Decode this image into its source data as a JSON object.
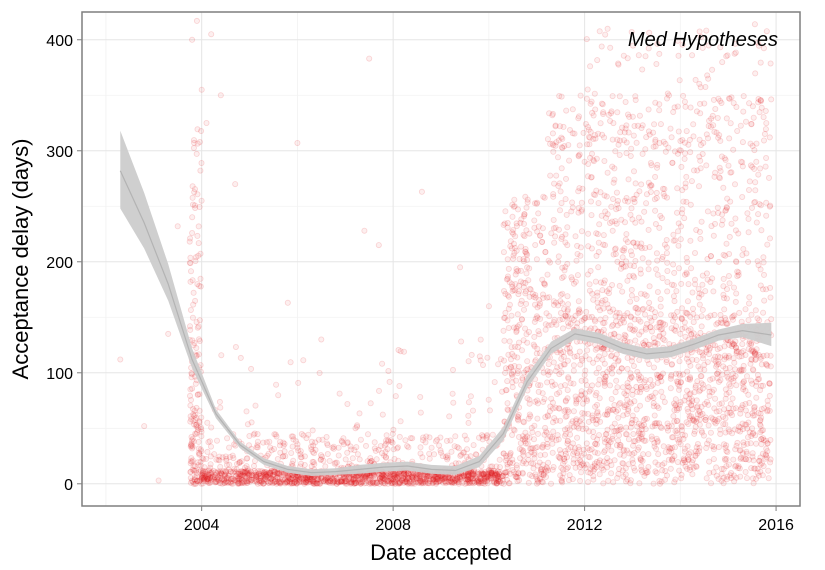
{
  "chart_data": {
    "type": "scatter",
    "title": "",
    "annotation": "Med Hypotheses",
    "xlabel": "Date accepted",
    "ylabel": "Acceptance delay (days)",
    "xlim": [
      2001.5,
      2016.5
    ],
    "ylim": [
      -20,
      425
    ],
    "x_ticks": [
      2004,
      2008,
      2012,
      2016
    ],
    "y_ticks": [
      0,
      100,
      200,
      300,
      400
    ],
    "grid": true,
    "point_color": "#e31a1c",
    "point_alpha": 0.12,
    "smooth_line_color": "#b3b3b3",
    "smooth_band_color": "#cccccc",
    "outliers": [
      {
        "x": 2002.3,
        "y": 112
      },
      {
        "x": 2002.8,
        "y": 52
      },
      {
        "x": 2003.1,
        "y": 3
      },
      {
        "x": 2003.3,
        "y": 135
      },
      {
        "x": 2003.5,
        "y": 232
      },
      {
        "x": 2003.8,
        "y": 400
      },
      {
        "x": 2003.9,
        "y": 417
      },
      {
        "x": 2004.0,
        "y": 355
      },
      {
        "x": 2004.1,
        "y": 325
      },
      {
        "x": 2004.2,
        "y": 405
      },
      {
        "x": 2004.4,
        "y": 350
      },
      {
        "x": 2004.7,
        "y": 270
      },
      {
        "x": 2005.8,
        "y": 163
      },
      {
        "x": 2006.0,
        "y": 307
      },
      {
        "x": 2006.5,
        "y": 130
      },
      {
        "x": 2007.4,
        "y": 228
      },
      {
        "x": 2007.5,
        "y": 383
      },
      {
        "x": 2007.7,
        "y": 215
      },
      {
        "x": 2008.6,
        "y": 263
      },
      {
        "x": 2009.4,
        "y": 195
      },
      {
        "x": 2010.0,
        "y": 160
      }
    ],
    "density": [
      {
        "x": [
          2003.75,
          2004.0
        ],
        "y_range": [
          0,
          320
        ],
        "n": 170,
        "bias": 2.0
      },
      {
        "x": [
          2004.0,
          2010.3
        ],
        "y_range": [
          0,
          12
        ],
        "n": 1000,
        "bias": 1
      },
      {
        "x": [
          2004.0,
          2010.3
        ],
        "y_range": [
          0,
          45
        ],
        "n": 450,
        "bias": 1.4
      },
      {
        "x": [
          2004.0,
          2010.3
        ],
        "y_range": [
          0,
          130
        ],
        "n": 130,
        "bias": 1.6
      },
      {
        "x": [
          2010.3,
          2011.2
        ],
        "y_range": [
          0,
          260
        ],
        "n": 380,
        "bias": 1.3
      },
      {
        "x": [
          2011.2,
          2015.9
        ],
        "y_range": [
          0,
          150
        ],
        "n": 1300,
        "bias": 1
      },
      {
        "x": [
          2011.2,
          2015.9
        ],
        "y_range": [
          150,
          350
        ],
        "n": 700,
        "bias": 1.2
      },
      {
        "x": [
          2012.0,
          2015.9
        ],
        "y_range": [
          300,
          415
        ],
        "n": 90,
        "bias": 1
      }
    ],
    "smooth": [
      {
        "x": 2002.3,
        "y": 282,
        "lo": 248,
        "hi": 318
      },
      {
        "x": 2002.8,
        "y": 235,
        "lo": 212,
        "hi": 262
      },
      {
        "x": 2003.3,
        "y": 180,
        "lo": 165,
        "hi": 198
      },
      {
        "x": 2003.8,
        "y": 112,
        "lo": 104,
        "hi": 122
      },
      {
        "x": 2004.3,
        "y": 63,
        "lo": 59,
        "hi": 67
      },
      {
        "x": 2004.8,
        "y": 35,
        "lo": 32,
        "hi": 38
      },
      {
        "x": 2005.3,
        "y": 20,
        "lo": 17,
        "hi": 23
      },
      {
        "x": 2005.8,
        "y": 13,
        "lo": 10,
        "hi": 16
      },
      {
        "x": 2006.3,
        "y": 10,
        "lo": 7,
        "hi": 13
      },
      {
        "x": 2006.8,
        "y": 11,
        "lo": 8,
        "hi": 14
      },
      {
        "x": 2007.3,
        "y": 13,
        "lo": 9,
        "hi": 17
      },
      {
        "x": 2007.8,
        "y": 15,
        "lo": 11,
        "hi": 19
      },
      {
        "x": 2008.3,
        "y": 16,
        "lo": 12,
        "hi": 20
      },
      {
        "x": 2008.8,
        "y": 13,
        "lo": 9,
        "hi": 17
      },
      {
        "x": 2009.3,
        "y": 12,
        "lo": 8,
        "hi": 16
      },
      {
        "x": 2009.8,
        "y": 20,
        "lo": 15,
        "hi": 25
      },
      {
        "x": 2010.3,
        "y": 45,
        "lo": 39,
        "hi": 51
      },
      {
        "x": 2010.8,
        "y": 92,
        "lo": 86,
        "hi": 98
      },
      {
        "x": 2011.3,
        "y": 122,
        "lo": 117,
        "hi": 128
      },
      {
        "x": 2011.8,
        "y": 135,
        "lo": 130,
        "hi": 140
      },
      {
        "x": 2012.3,
        "y": 131,
        "lo": 126,
        "hi": 136
      },
      {
        "x": 2012.8,
        "y": 122,
        "lo": 117,
        "hi": 127
      },
      {
        "x": 2013.3,
        "y": 117,
        "lo": 112,
        "hi": 122
      },
      {
        "x": 2013.8,
        "y": 119,
        "lo": 114,
        "hi": 124
      },
      {
        "x": 2014.3,
        "y": 126,
        "lo": 121,
        "hi": 131
      },
      {
        "x": 2014.8,
        "y": 134,
        "lo": 129,
        "hi": 139
      },
      {
        "x": 2015.3,
        "y": 138,
        "lo": 132,
        "hi": 144
      },
      {
        "x": 2015.9,
        "y": 134,
        "lo": 124,
        "hi": 145
      }
    ]
  }
}
